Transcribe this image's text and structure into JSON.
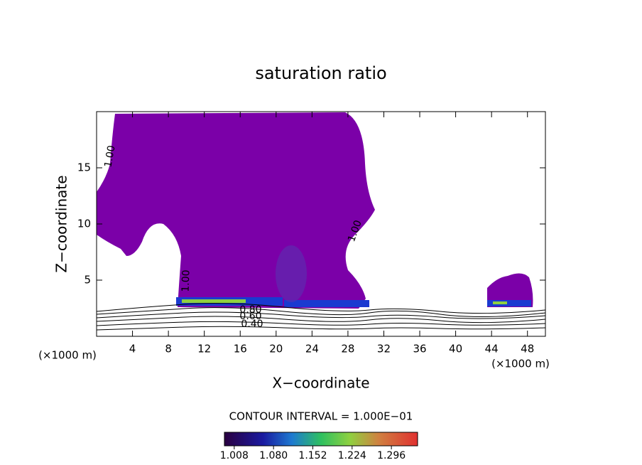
{
  "chart_data": {
    "type": "contour",
    "title": "saturation ratio",
    "xlabel": "X−coordinate",
    "ylabel": "Z−coordinate",
    "x_unit_label": "(×1000 m)",
    "x_unit_label_right": "(×1000 m)",
    "xlim": [
      0,
      50
    ],
    "ylim": [
      0,
      20
    ],
    "xticks": [
      4,
      8,
      12,
      16,
      20,
      24,
      28,
      32,
      36,
      40,
      44,
      48
    ],
    "yticks": [
      5,
      10,
      15
    ],
    "contour_labels": [
      "1.00",
      "1.00",
      "1.00",
      "0.80",
      "0.60",
      "0.40"
    ],
    "contour_interval": "CONTOUR INTERVAL = 1.000E−01",
    "fill_color": "#7b00a8",
    "clim": [
      0.99,
      1.344
    ],
    "cticks": [
      1.008,
      {
        "value": 1.08,
        "label": "1.080"
      },
      1.152,
      1.224,
      1.296
    ]
  }
}
